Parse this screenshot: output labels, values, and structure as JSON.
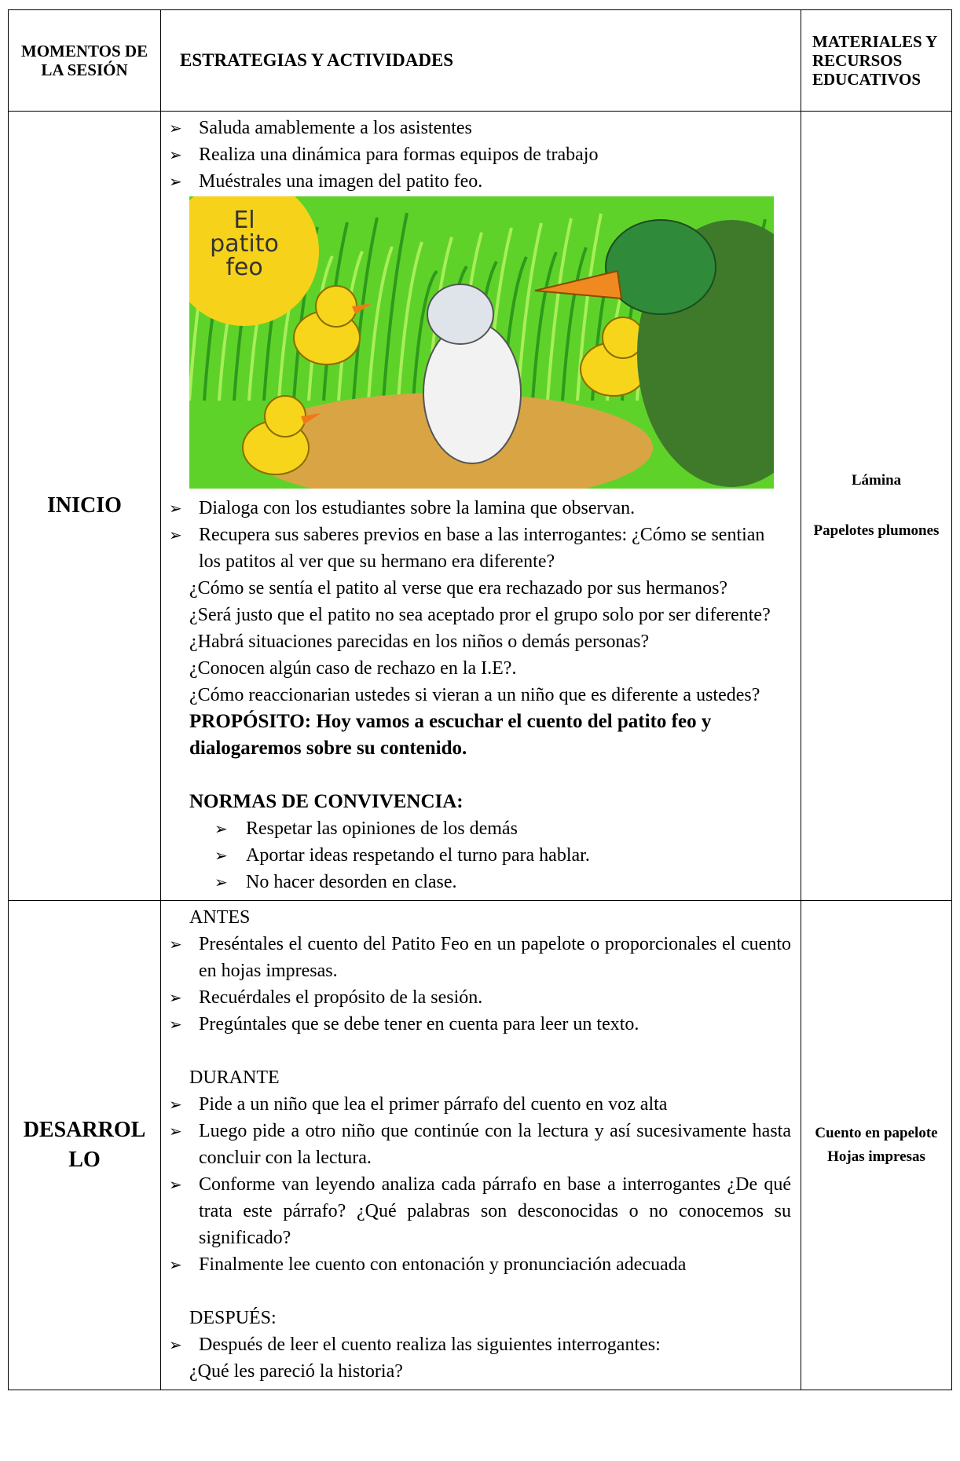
{
  "header": {
    "moments": "MOMENTOS DE LA SESIÓN",
    "strategies": "ESTRATEGIAS Y ACTIVIDADES",
    "materials": "MATERIALES Y RECURSOS EDUCATIVOS"
  },
  "inicio": {
    "moment": "INICIO",
    "bullets_before_image": [
      "Saluda amablemente a los asistentes",
      "Realiza una dinámica para formas equipos de trabajo",
      "Muéstrales una imagen del patito feo."
    ],
    "image_text": [
      "El",
      "patito",
      "feo"
    ],
    "bullets_after_image": [
      "Dialoga con los estudiantes sobre la lamina que observan.",
      "Recupera sus saberes previos en base a las interrogantes: ¿Cómo se sentian los patitos al ver que su hermano era diferente?"
    ],
    "questions": [
      "¿Cómo se sentía el patito al verse que era rechazado por sus hermanos?",
      "¿Será justo que el patito no sea aceptado pror el grupo solo por ser diferente?",
      "¿Habrá situaciones parecidas en los niños o demás personas?",
      "¿Conocen algún caso de rechazo en la I.E?.",
      "¿Cómo reaccionarian ustedes si vieran a un niño que es diferente a ustedes?"
    ],
    "purpose": "PROPÓSITO: Hoy vamos a escuchar el cuento del patito feo y dialogaremos sobre su contenido.",
    "norms_title": "NORMAS DE CONVIVENCIA:",
    "norms": [
      "Respetar las opiniones de los demás",
      "Aportar ideas respetando el turno para hablar.",
      "No hacer desorden en clase."
    ],
    "materials": [
      "Lámina",
      "Papelotes plumones"
    ]
  },
  "desarrollo": {
    "moment": "DESARROLLO",
    "sections": [
      {
        "title": "ANTES",
        "bullets": [
          "Preséntales el cuento del Patito Feo en un papelote o proporcionales el cuento en hojas impresas.",
          "Recuérdales el propósito de la sesión.",
          "Pregúntales que se debe tener en cuenta para leer un texto."
        ]
      },
      {
        "title": "DURANTE",
        "bullets": [
          "Pide a un niño que lea el primer párrafo del cuento en voz alta",
          "Luego pide a otro niño que continúe con la lectura y así sucesivamente hasta concluir con la lectura.",
          "Conforme van leyendo analiza cada párrafo en base a interrogantes ¿De qué trata este párrafo? ¿Qué palabras son desconocidas o no conocemos su significado?",
          "Finalmente lee cuento con entonación y pronunciación adecuada"
        ]
      },
      {
        "title": "DESPUÉS:",
        "bullets": [
          "Después de leer el cuento realiza las siguientes interrogantes:"
        ],
        "questions": [
          "¿Qué les pareció la historia?"
        ]
      }
    ],
    "materials": [
      "Cuento en papelote",
      "Hojas impresas"
    ]
  }
}
